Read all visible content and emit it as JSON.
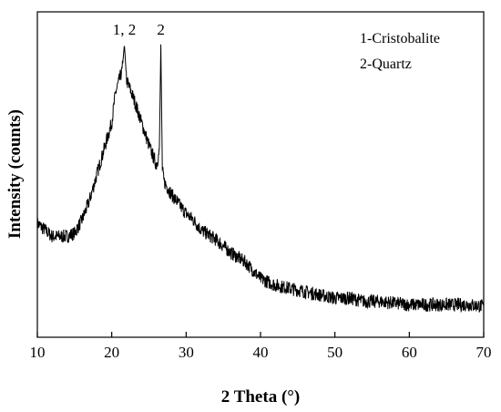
{
  "chart_data": {
    "type": "line",
    "title": "",
    "xlabel": "2 Theta (°)",
    "ylabel": "Intensity (counts)",
    "xlim": [
      10,
      70
    ],
    "ylim": [
      0,
      100
    ],
    "y_tick_labels": "none",
    "x_ticks": [
      10,
      20,
      30,
      40,
      50,
      60,
      70
    ],
    "x_tick_labels": [
      "10",
      "20",
      "30",
      "40",
      "50",
      "60",
      "70"
    ],
    "grid": false,
    "legend_position": "top-right",
    "legend": [
      "1-Cristobalite",
      "2-Quartz"
    ],
    "annotations": [
      {
        "text": "1, 2",
        "x": 21.7
      },
      {
        "text": "2",
        "x": 26.6
      }
    ],
    "series": [
      {
        "color": "#000000",
        "x": [
          10,
          11,
          12,
          13,
          14,
          15,
          16,
          17,
          18,
          19,
          20,
          20.5,
          21,
          21.4,
          21.7,
          22,
          22.5,
          23,
          24,
          25,
          26,
          26.4,
          26.6,
          26.8,
          27,
          28,
          29,
          30,
          31,
          32,
          34,
          36,
          38,
          40,
          42,
          44,
          46,
          48,
          50,
          52,
          54,
          56,
          58,
          60,
          62,
          64,
          66,
          68,
          70
        ],
        "values": [
          35,
          33,
          31,
          31,
          31,
          32,
          36,
          42,
          50,
          58,
          66,
          75,
          79,
          82,
          90,
          79,
          76,
          73,
          66,
          59,
          53,
          57,
          90,
          52,
          48,
          44,
          41,
          38,
          36,
          33,
          30,
          26,
          23,
          18,
          16,
          15,
          14,
          13,
          12,
          12,
          11,
          11,
          10.5,
          10,
          10,
          10,
          10,
          10,
          9.5
        ]
      }
    ]
  }
}
